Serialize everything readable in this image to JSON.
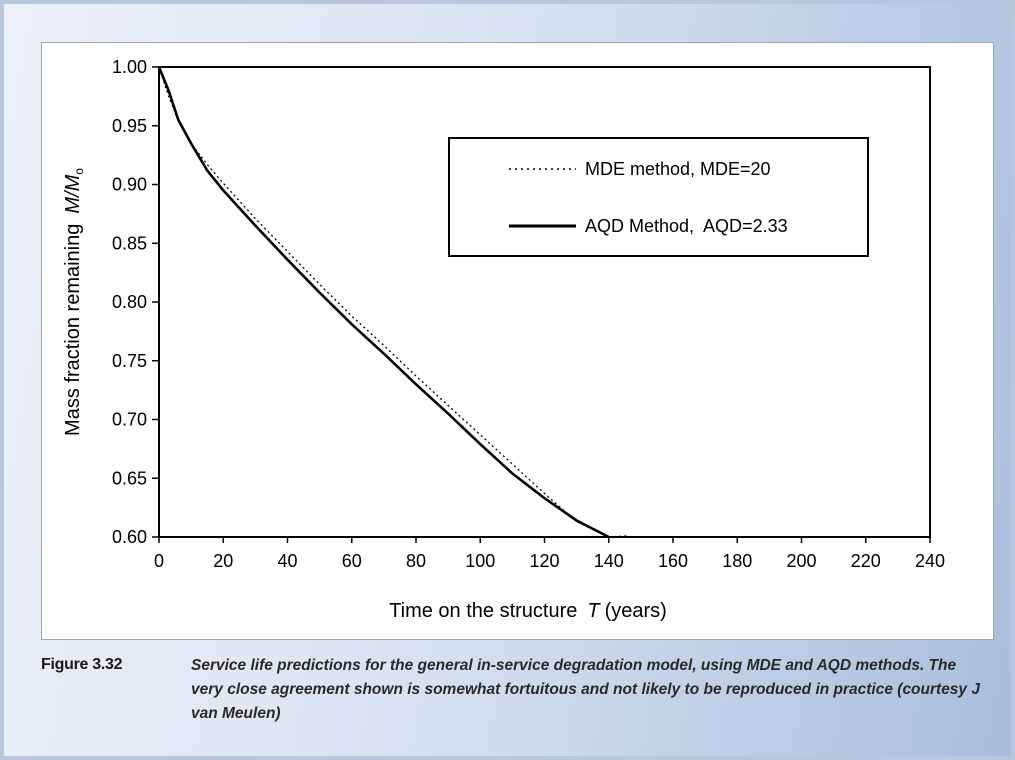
{
  "chart_data": {
    "type": "line",
    "xlabel": "Time on the structure",
    "xlabel_var": "T",
    "xlabel_unit": "(years)",
    "ylabel": "Mass fraction remaining",
    "ylabel_var": "M/M",
    "ylabel_sub": "o",
    "xlim": [
      0,
      240
    ],
    "ylim": [
      0.6,
      1.0
    ],
    "x_ticks": [
      "0",
      "20",
      "40",
      "60",
      "80",
      "100",
      "120",
      "140",
      "160",
      "180",
      "200",
      "220",
      "240"
    ],
    "y_ticks": [
      "0.60",
      "0.65",
      "0.70",
      "0.75",
      "0.80",
      "0.85",
      "0.90",
      "0.95",
      "1.00"
    ],
    "grid": false,
    "legend_position": "top-right",
    "series": [
      {
        "name": "MDE method, MDE=20",
        "style": "dotted",
        "color": "#000000",
        "x": [
          0,
          3,
          6,
          10,
          15,
          20,
          30,
          40,
          50,
          60,
          70,
          80,
          90,
          100,
          110,
          120,
          130,
          140,
          146
        ],
        "y": [
          1.0,
          0.975,
          0.955,
          0.935,
          0.917,
          0.901,
          0.871,
          0.843,
          0.815,
          0.788,
          0.763,
          0.737,
          0.712,
          0.687,
          0.662,
          0.637,
          0.613,
          0.588,
          0.601
        ]
      },
      {
        "name": "AQD Method,  AQD=2.33",
        "style": "solid",
        "color": "#000000",
        "x": [
          0,
          3,
          6,
          10,
          15,
          20,
          30,
          40,
          50,
          60,
          70,
          80,
          90,
          100,
          110,
          120,
          130,
          140
        ],
        "y": [
          1.0,
          0.98,
          0.955,
          0.935,
          0.912,
          0.895,
          0.865,
          0.836,
          0.808,
          0.781,
          0.756,
          0.73,
          0.705,
          0.679,
          0.654,
          0.633,
          0.614,
          0.6
        ]
      }
    ]
  },
  "caption": {
    "label": "Figure 3.32",
    "text": "Service life predictions for the general in-service degradation model, using MDE and AQD methods. The very close agreement shown is somewhat fortuitous and not likely to be reproduced in practice (courtesy J van Meulen)"
  }
}
